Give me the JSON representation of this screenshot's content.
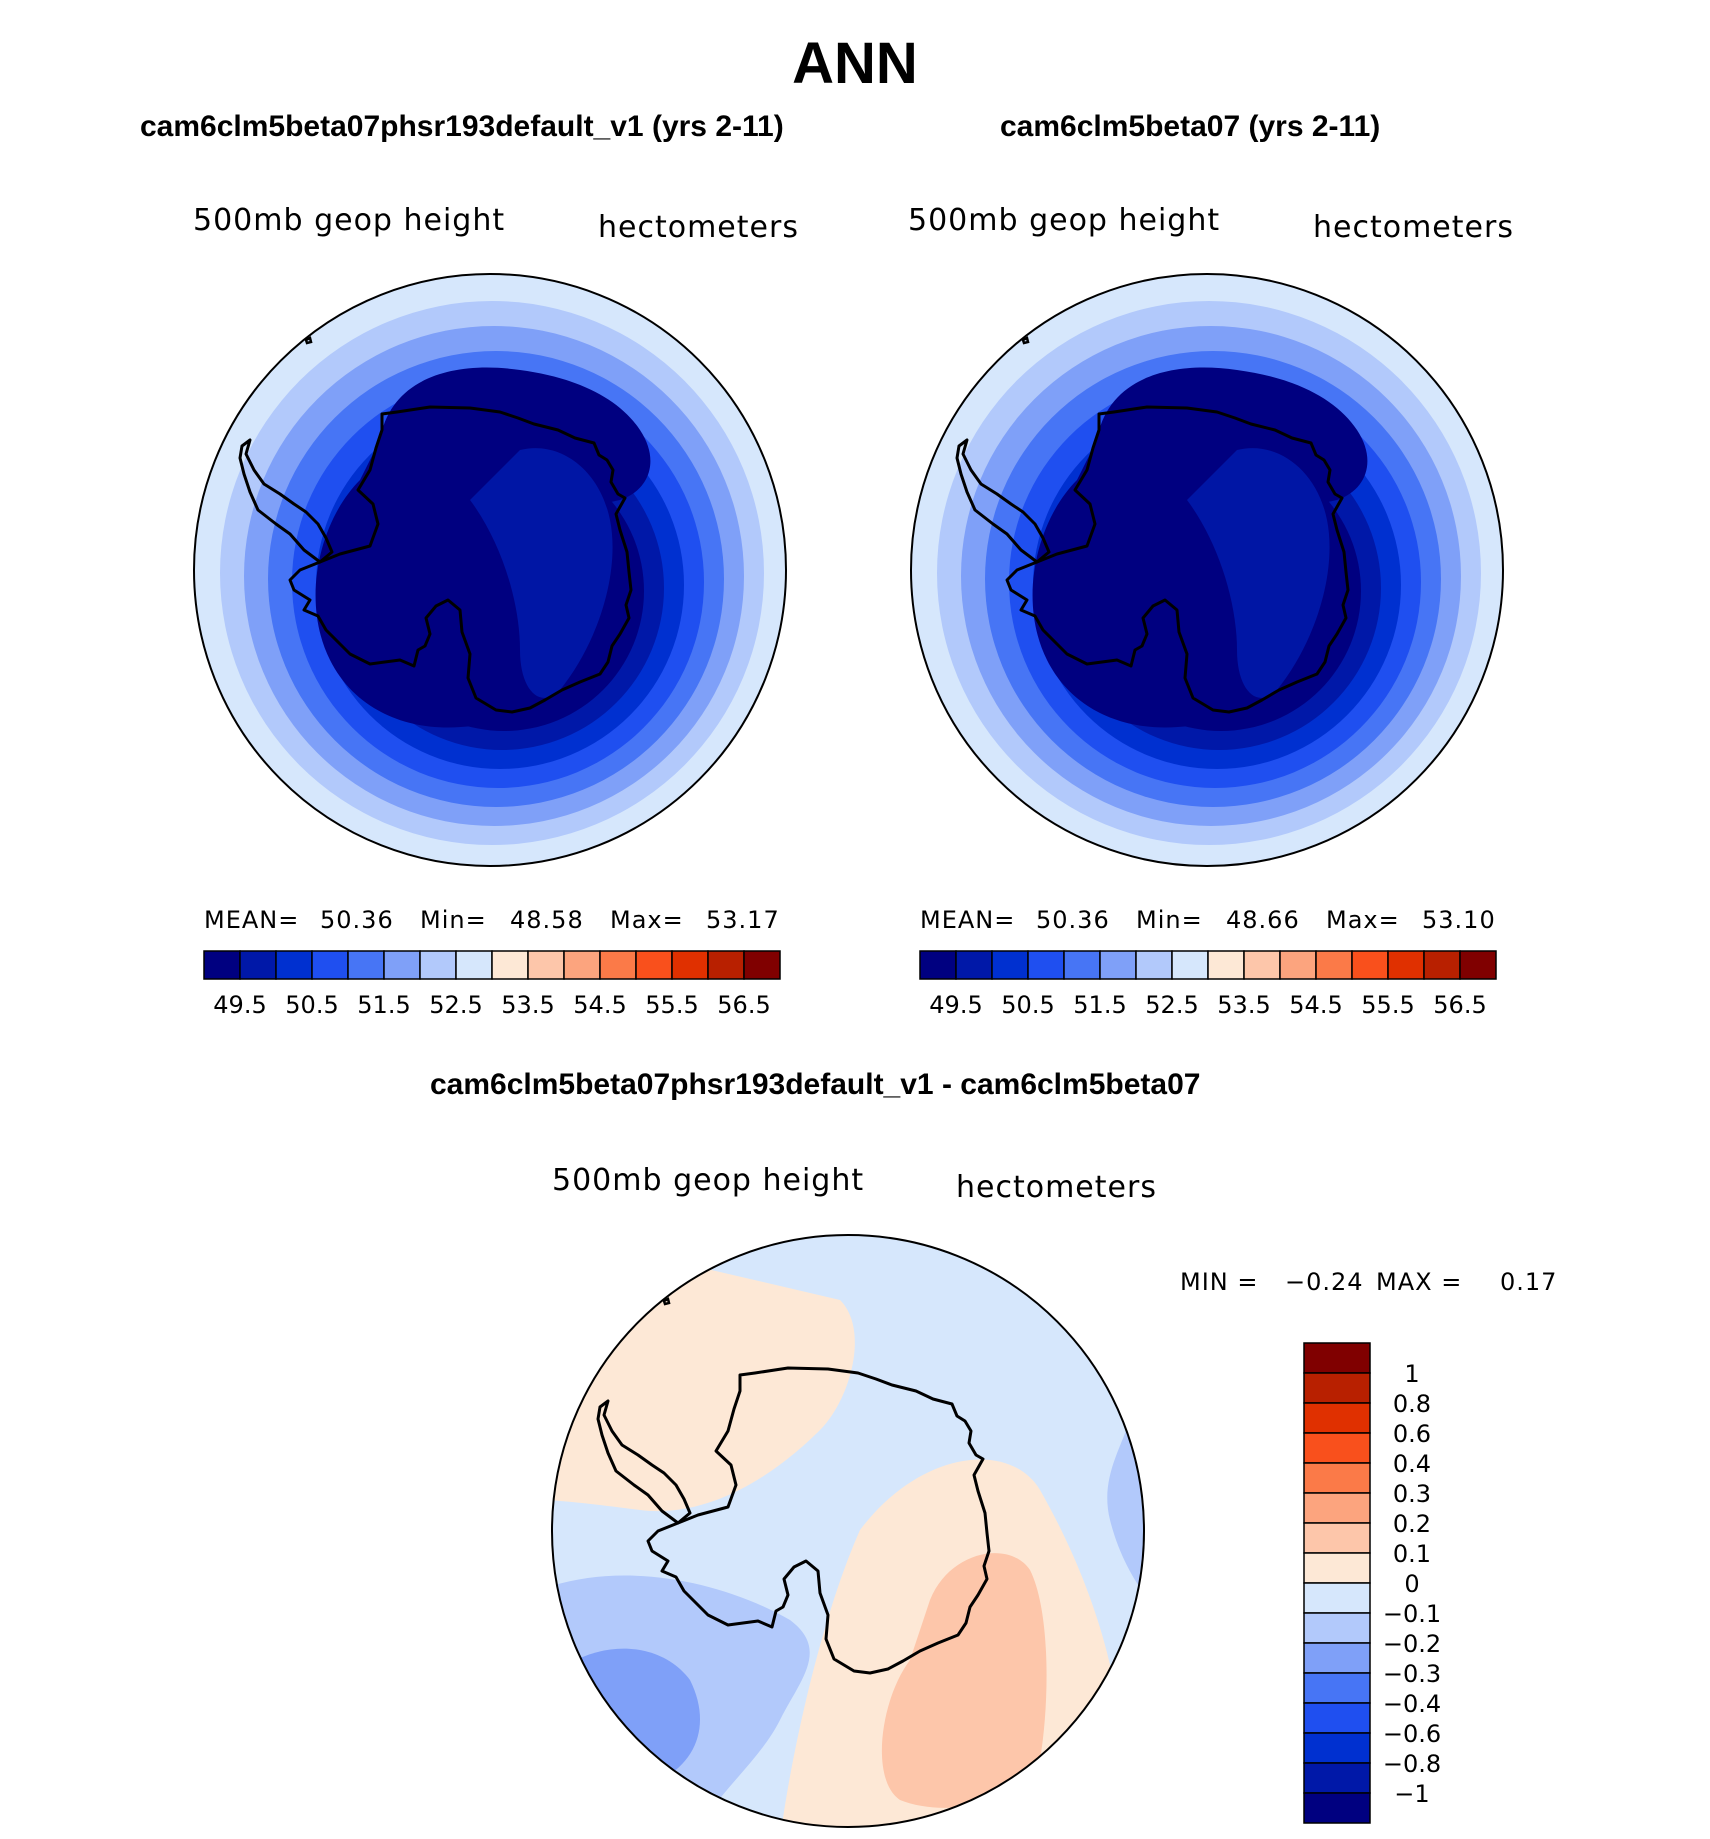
{
  "title": "ANN",
  "colors": {
    "full": [
      "#000080",
      "#0018a8",
      "#0030d0",
      "#1f4ff0",
      "#4775f5",
      "#7fa0f8",
      "#b2c9fb",
      "#d6e7fc",
      "#fde8d6",
      "#fdc6aa",
      "#fca47e",
      "#fb7a48",
      "#f9501c",
      "#e03000",
      "#b82000",
      "#800000"
    ],
    "diff": [
      "#000080",
      "#0018a8",
      "#0030d0",
      "#1f4ff0",
      "#4775f5",
      "#7fa0f8",
      "#b2c9fb",
      "#d6e7fc",
      "#fde8d6",
      "#fdc6aa",
      "#fca47e",
      "#fb7a48",
      "#f9501c",
      "#e03000",
      "#b82000",
      "#800000"
    ]
  },
  "panels": {
    "left": {
      "title": "cam6clm5beta07phsr193default_v1 (yrs 2-11)",
      "var_label": "500mb geop height",
      "units": "hectometers",
      "stats": {
        "mean_label": "MEAN=",
        "mean": "50.36",
        "min_label": "Min=",
        "min": "48.58",
        "max_label": "Max=",
        "max": "53.17"
      }
    },
    "right": {
      "title": "cam6clm5beta07 (yrs 2-11)",
      "var_label": "500mb geop height",
      "units": "hectometers",
      "stats": {
        "mean_label": "MEAN=",
        "mean": "50.36",
        "min_label": "Min=",
        "min": "48.66",
        "max_label": "Max=",
        "max": "53.10"
      }
    },
    "diff": {
      "title": "cam6clm5beta07phsr193default_v1 - cam6clm5beta07",
      "var_label": "500mb geop height",
      "units": "hectometers",
      "stats": {
        "min_label": "MIN =",
        "min": "−0.24",
        "max_label": "MAX =",
        "max": "0.17"
      }
    }
  },
  "chart_data": [
    {
      "type": "heatmap",
      "title": "cam6clm5beta07phsr193default_v1 (yrs 2-11)",
      "projection": "south-polar-stereographic",
      "colorbar_levels": [
        49.5,
        50,
        50.5,
        51,
        51.5,
        52,
        52.5,
        53,
        53.5,
        54,
        54.5,
        55,
        55.5,
        56,
        56.5
      ],
      "colorbar_tick_labels": [
        "49.5",
        "50.5",
        "51.5",
        "52.5",
        "53.5",
        "54.5",
        "55.5",
        "56.5"
      ],
      "colorbar_orientation": "horizontal",
      "mean": 50.36,
      "min": 48.58,
      "max": 53.17
    },
    {
      "type": "heatmap",
      "title": "cam6clm5beta07 (yrs 2-11)",
      "projection": "south-polar-stereographic",
      "colorbar_levels": [
        49.5,
        50,
        50.5,
        51,
        51.5,
        52,
        52.5,
        53,
        53.5,
        54,
        54.5,
        55,
        55.5,
        56,
        56.5
      ],
      "colorbar_tick_labels": [
        "49.5",
        "50.5",
        "51.5",
        "52.5",
        "53.5",
        "54.5",
        "55.5",
        "56.5"
      ],
      "colorbar_orientation": "horizontal",
      "mean": 50.36,
      "min": 48.66,
      "max": 53.1
    },
    {
      "type": "heatmap",
      "title": "cam6clm5beta07phsr193default_v1 - cam6clm5beta07",
      "projection": "south-polar-stereographic",
      "colorbar_levels": [
        -1,
        -0.8,
        -0.6,
        -0.4,
        -0.3,
        -0.2,
        -0.1,
        0,
        0.1,
        0.2,
        0.3,
        0.4,
        0.6,
        0.8,
        1
      ],
      "colorbar_tick_labels": [
        "−1",
        "−0.8",
        "−0.6",
        "−0.4",
        "−0.3",
        "−0.2",
        "−0.1",
        "0",
        "0.1",
        "0.2",
        "0.3",
        "0.4",
        "0.6",
        "0.8",
        "1"
      ],
      "colorbar_orientation": "vertical",
      "min": -0.24,
      "max": 0.17
    }
  ]
}
